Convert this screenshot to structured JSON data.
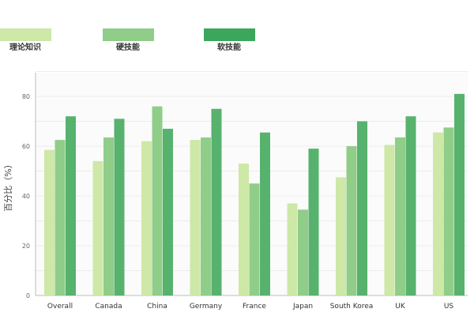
{
  "chart_data": {
    "type": "bar",
    "title": "",
    "xlabel": "",
    "ylabel": "百分比（%）",
    "ylim": [
      0,
      90
    ],
    "yticks": [
      0,
      20,
      40,
      60,
      80
    ],
    "grid": true,
    "legend_position": "top-left",
    "categories": [
      "Overall",
      "Canada",
      "China",
      "Germany",
      "France",
      "Japan",
      "South Korea",
      "UK",
      "US"
    ],
    "series": [
      {
        "name": "理论知识",
        "color": "#cde8a7",
        "values": [
          58.5,
          54,
          62,
          62.5,
          53,
          37,
          47.5,
          60.5,
          65.5
        ]
      },
      {
        "name": "硬技能",
        "color": "#8fcd89",
        "values": [
          62.5,
          63.5,
          76,
          63.5,
          45,
          34.5,
          60,
          63.5,
          67.5
        ]
      },
      {
        "name": "软技能",
        "color": "#57b26d",
        "values": [
          72,
          71,
          67,
          75,
          65.5,
          59,
          70,
          72,
          81
        ]
      }
    ],
    "legend_colors": [
      "#cde8a7",
      "#8fcd89",
      "#3ba75d"
    ]
  }
}
